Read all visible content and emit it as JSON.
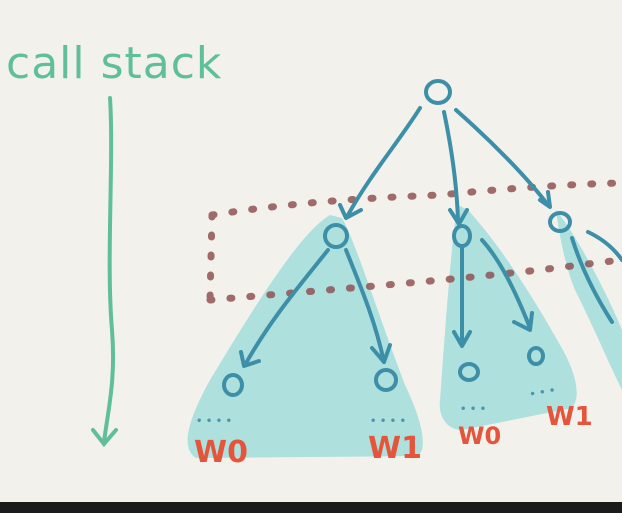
{
  "title": "call stack",
  "colors": {
    "background": "#f2f1ec",
    "arrow_green": "#5fbf9a",
    "tree_blue": "#3d8fa8",
    "region_fill": "#aee0de",
    "dashed_red": "#8b4a4a",
    "label_red": "#e4553c",
    "dots": "#4b95ae"
  },
  "labels": {
    "w0_a": "W0",
    "w1_a": "W1",
    "w0_b": "W0",
    "w1_b": "W1",
    "dots_a1": "• • • •",
    "dots_a2": "• • • •",
    "dots_b1": "• • •",
    "dots_b2": "• • •"
  }
}
